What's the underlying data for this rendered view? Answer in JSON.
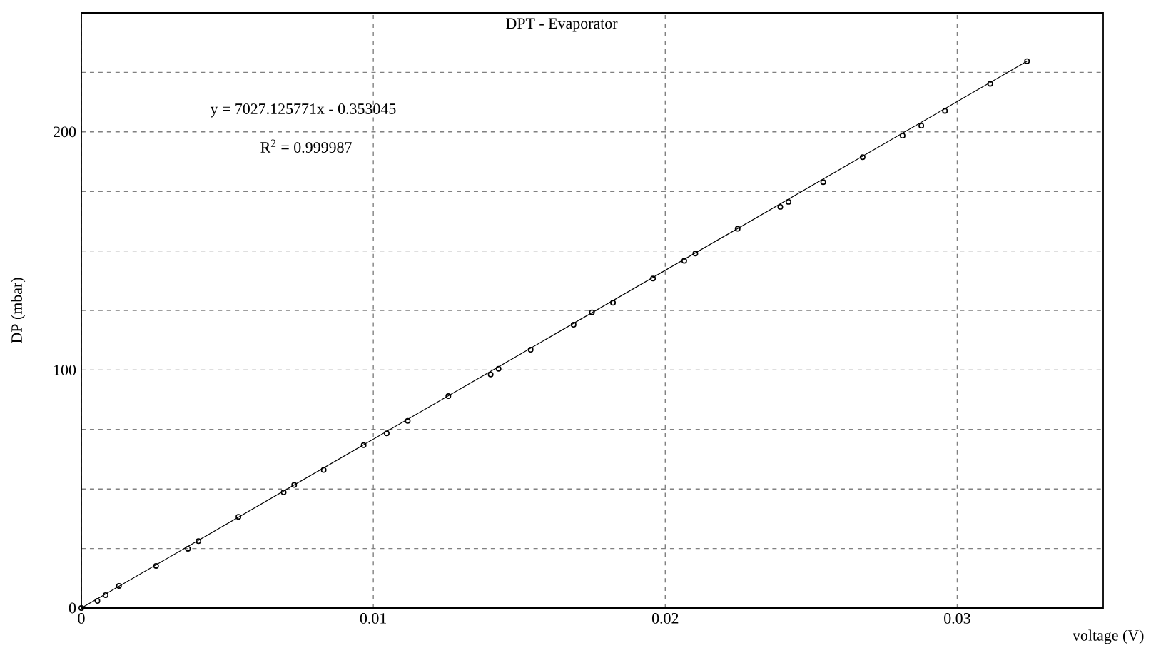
{
  "chart_data": {
    "type": "scatter",
    "title": "DPT - Evaporator",
    "xlabel": "voltage (V)",
    "ylabel": "DP (mbar)",
    "annotations": [
      "y = 7027.125771x - 0.353045",
      "R$^{2}$ = 0.999987"
    ],
    "xlim": [
      0,
      0.035
    ],
    "ylim": [
      0,
      250
    ],
    "xticks": [
      0,
      0.01,
      0.02,
      0.03
    ],
    "yticks": [
      0,
      {
        "value": 25,
        "label": null
      },
      {
        "value": 50,
        "label": null
      },
      {
        "value": 75,
        "label": null
      },
      100,
      {
        "value": 125,
        "label": null
      },
      {
        "value": 150,
        "label": null
      },
      {
        "value": 175,
        "label": null
      },
      200,
      {
        "value": 225,
        "label": null
      }
    ],
    "grid": true,
    "series": [
      {
        "marker": "circle",
        "color": "#000000",
        "x": [
          0,
          0.00055,
          0.00083,
          0.00129,
          0.00256,
          0.00365,
          0.00401,
          0.00538,
          0.00693,
          0.00729,
          0.0083,
          0.00967,
          0.01046,
          0.01118,
          0.01257,
          0.01402,
          0.01429,
          0.01539,
          0.01686,
          0.01749,
          0.01821,
          0.01958,
          0.02065,
          0.02103,
          0.02248,
          0.02394,
          0.02422,
          0.02541,
          0.02676,
          0.02813,
          0.02877,
          0.02958,
          0.03113,
          0.03239
        ],
        "values": [
          0,
          3.0,
          5.4,
          9.3,
          17.7,
          24.9,
          28.1,
          38.3,
          48.6,
          51.7,
          58.0,
          68.4,
          73.4,
          78.6,
          89.0,
          98.1,
          100.5,
          108.5,
          119.0,
          124.2,
          128.2,
          138.4,
          145.8,
          148.9,
          159.3,
          168.5,
          170.6,
          178.9,
          189.4,
          198.4,
          202.6,
          208.8,
          220.2,
          229.7
        ]
      },
      {
        "type": "line",
        "color": "#000000",
        "x": [
          0,
          0.03239
        ],
        "values": [
          0,
          229.7
        ]
      }
    ]
  }
}
